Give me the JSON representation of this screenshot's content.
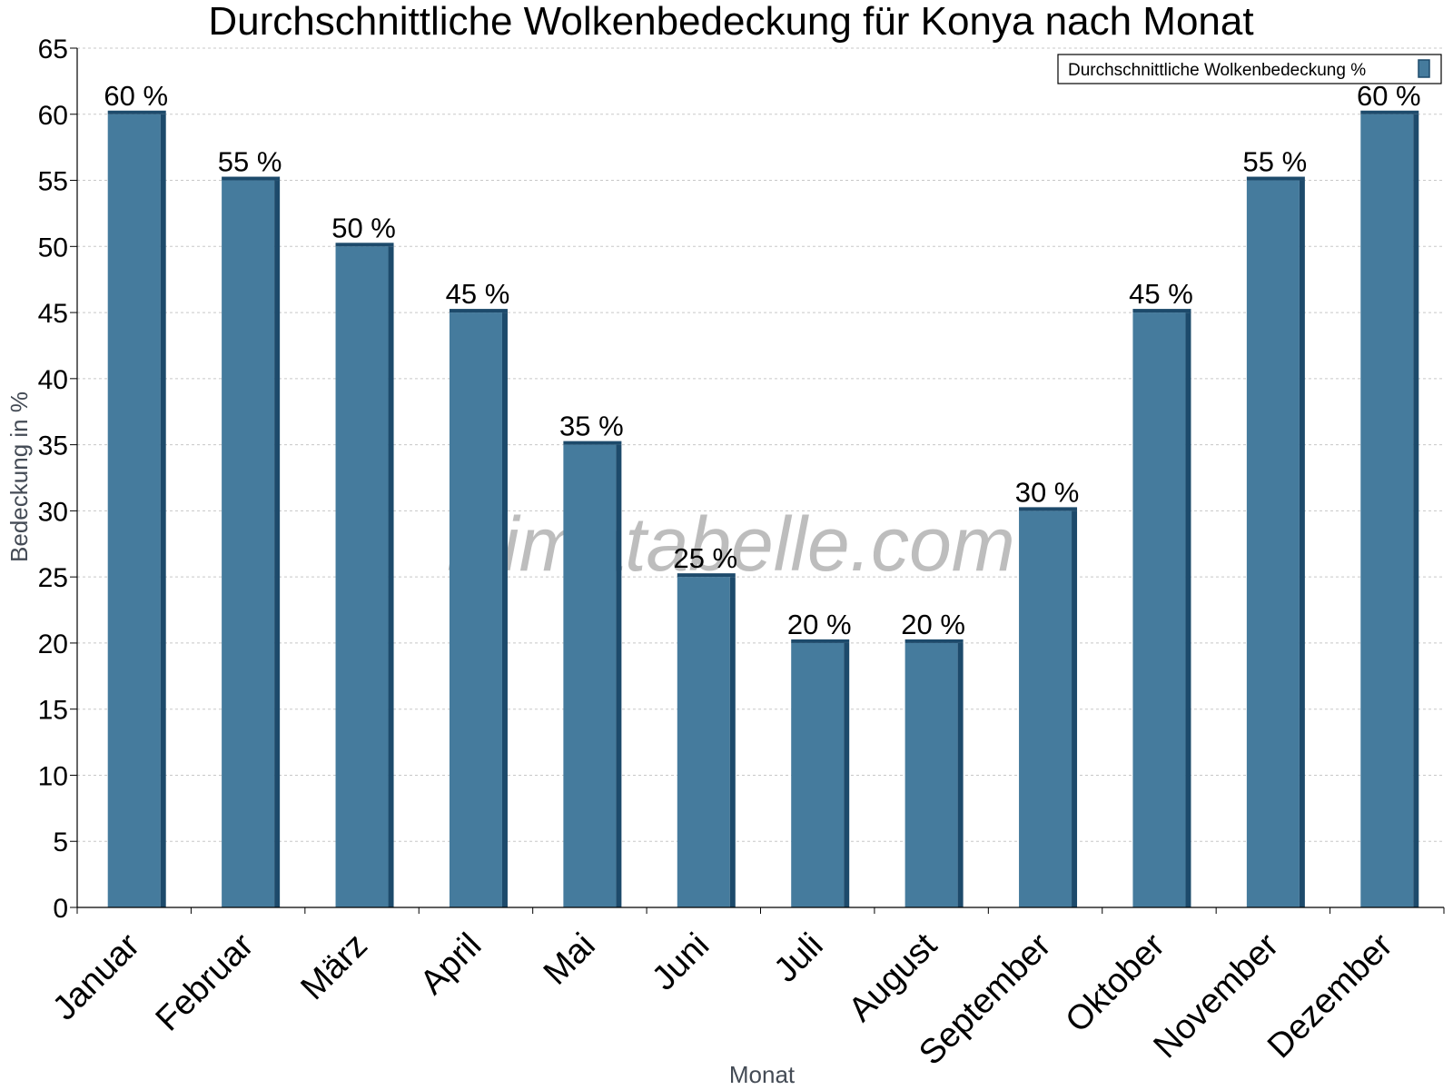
{
  "chart_data": {
    "type": "bar",
    "title": "Durchschnittliche Wolkenbedeckung für Konya nach Monat",
    "xlabel": "Monat",
    "ylabel": "Bedeckung in %",
    "categories": [
      "Januar",
      "Februar",
      "März",
      "April",
      "Mai",
      "Juni",
      "Juli",
      "August",
      "September",
      "Oktober",
      "November",
      "Dezember"
    ],
    "series": [
      {
        "name": "Durchschnittliche Wolkenbedeckung %",
        "values": [
          60,
          55,
          50,
          45,
          35,
          25,
          20,
          20,
          30,
          45,
          55,
          60
        ],
        "data_labels": [
          "60 %",
          "55 %",
          "50 %",
          "45 %",
          "35 %",
          "25 %",
          "20 %",
          "20 %",
          "30 %",
          "45 %",
          "55 %",
          "60 %"
        ]
      }
    ],
    "ylim": [
      0,
      65
    ],
    "yticks": [
      "0",
      "5",
      "10",
      "15",
      "20",
      "25",
      "30",
      "35",
      "40",
      "45",
      "50",
      "55",
      "60",
      "65"
    ],
    "grid": true,
    "legend_position": "top-right",
    "watermark": "klimatabelle.com",
    "colors": {
      "bar_fill": "#457b9d",
      "bar_shade": "#1d4a6b",
      "grid": "#c8c8c8",
      "axis": "#000000"
    }
  }
}
